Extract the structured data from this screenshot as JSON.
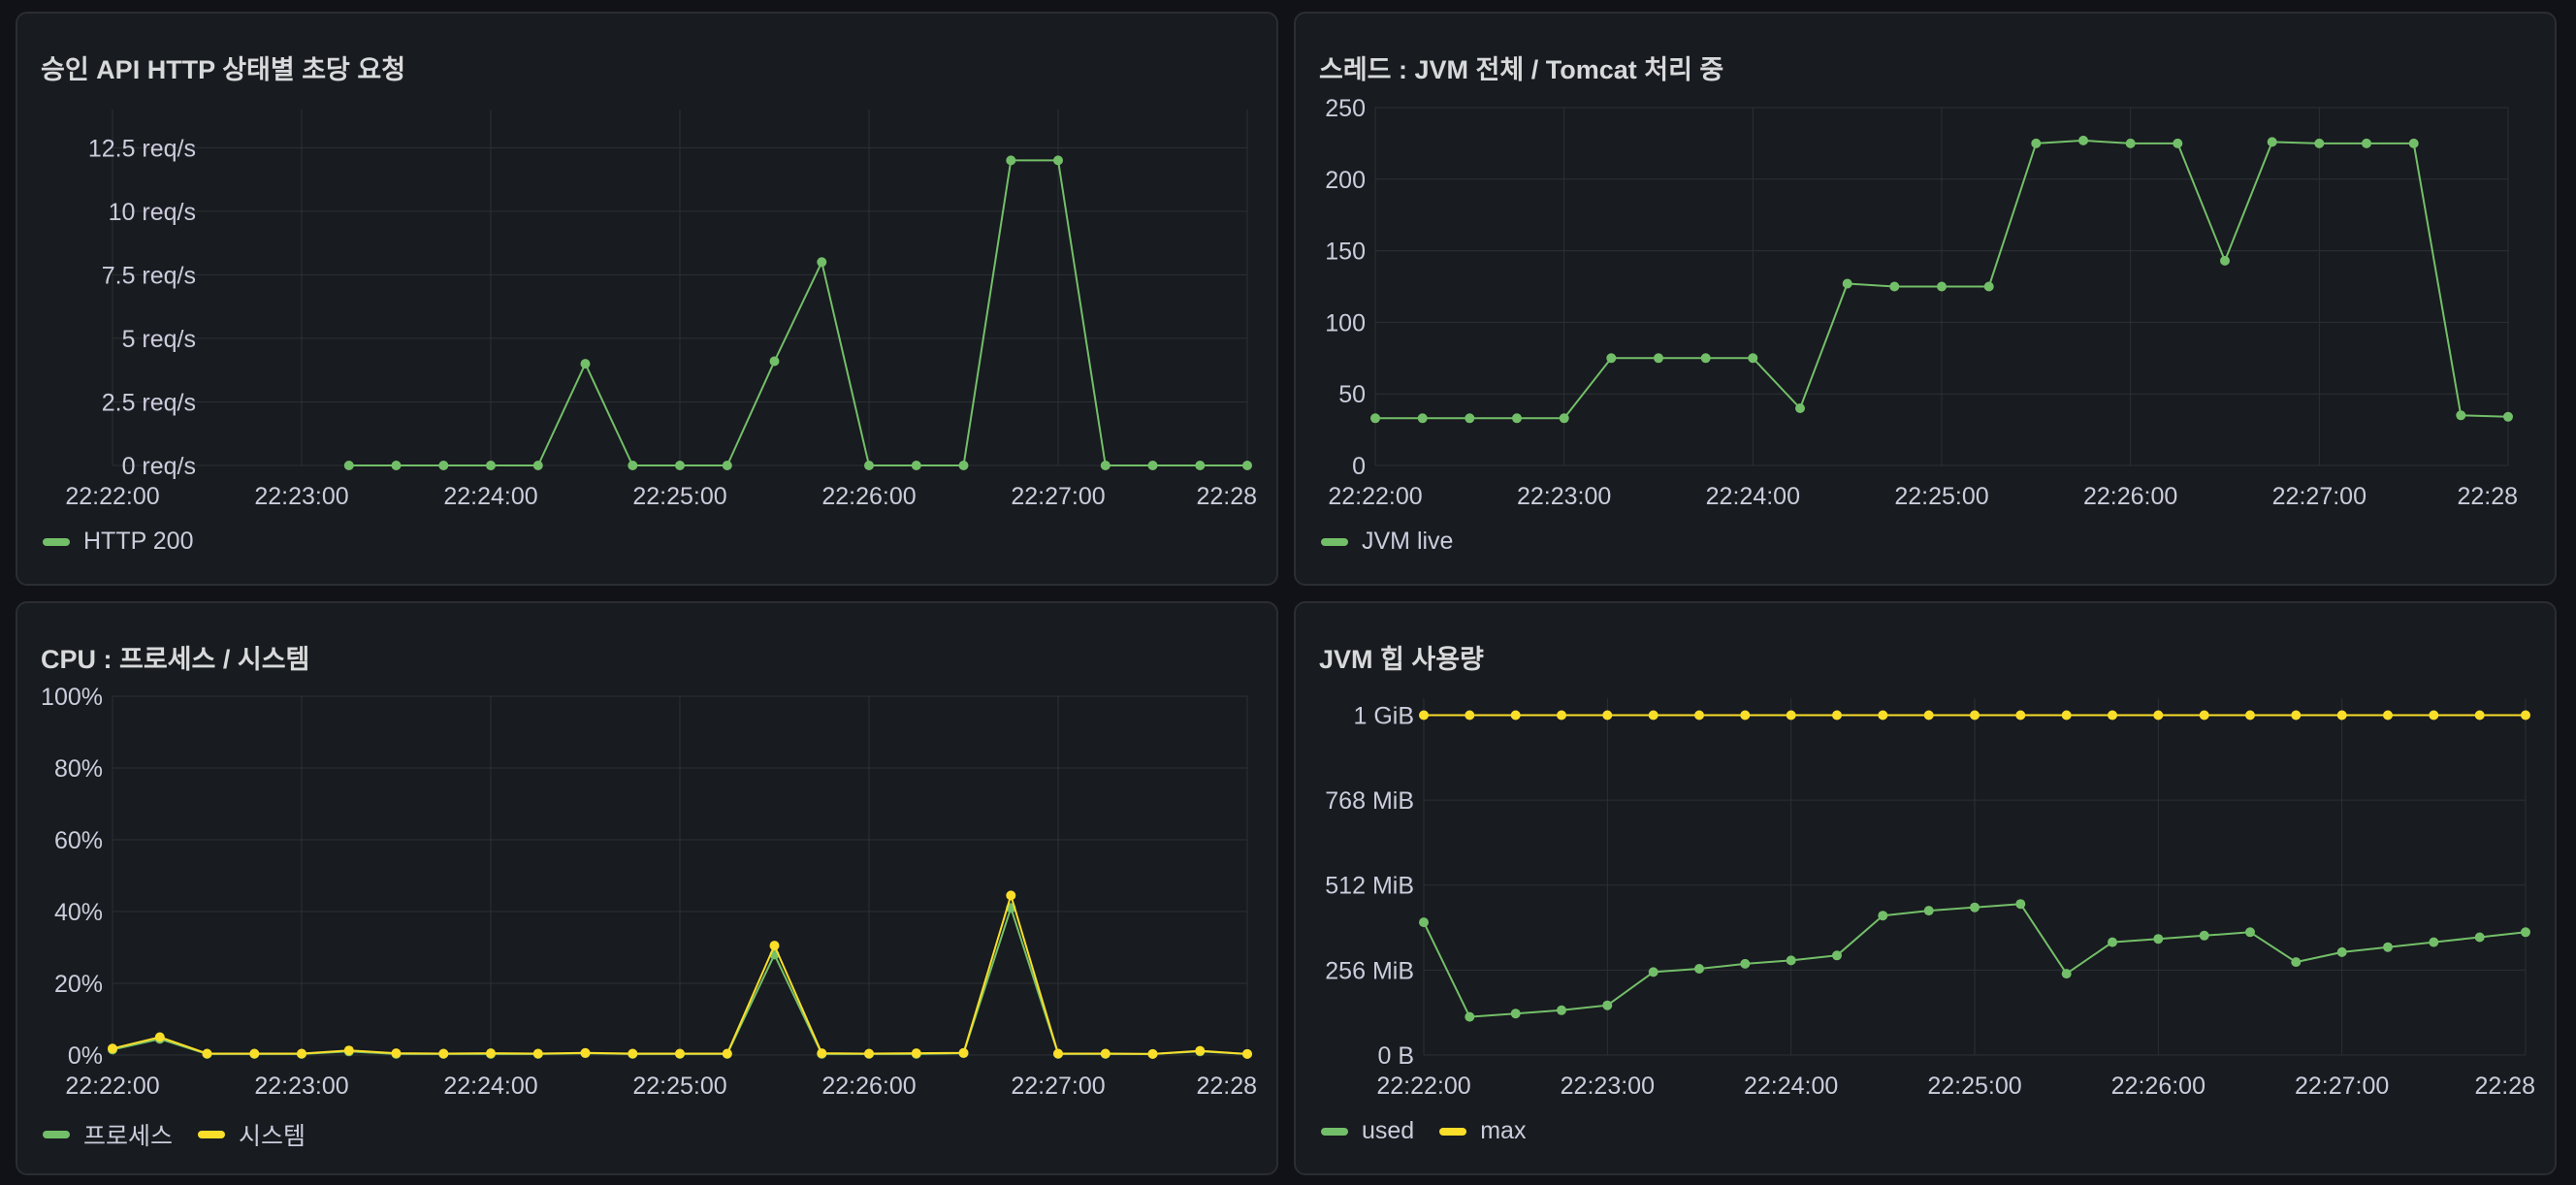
{
  "colors": {
    "green": "#73bf69",
    "yellow": "#fade2a",
    "grid": "#2c3036",
    "text": "#ccccdc"
  },
  "panels": [
    {
      "title": "승인 API HTTP 상태별 초당 요청",
      "chart_data": {
        "type": "line",
        "title": "승인 API HTTP 상태별 초당 요청",
        "x_ticks": [
          "22:22:00",
          "22:23:00",
          "22:24:00",
          "22:25:00",
          "22:26:00",
          "22:27:00",
          "22:28"
        ],
        "xlim": [
          "22:22:00",
          "22:28:00"
        ],
        "y_ticks": [
          0,
          2.5,
          5,
          7.5,
          10,
          12.5
        ],
        "y_tick_labels": [
          "0 req/s",
          "2.5 req/s",
          "5 req/s",
          "7.5 req/s",
          "10 req/s",
          "12.5 req/s"
        ],
        "ylim": [
          0,
          14
        ],
        "grid": true,
        "legend": "bottom-left",
        "series": [
          {
            "name": "HTTP 200",
            "color": "#73bf69",
            "x": [
              "22:23:15",
              "22:23:30",
              "22:23:45",
              "22:24:00",
              "22:24:15",
              "22:24:30",
              "22:24:45",
              "22:25:00",
              "22:25:15",
              "22:25:30",
              "22:25:45",
              "22:26:00",
              "22:26:15",
              "22:26:30",
              "22:26:45",
              "22:27:00",
              "22:27:15",
              "22:27:30",
              "22:27:45",
              "22:28:00"
            ],
            "y": [
              0,
              0,
              0,
              0,
              0,
              4,
              0,
              0,
              0,
              4.1,
              8,
              0,
              0,
              0,
              12,
              12,
              0,
              0,
              0,
              0
            ]
          }
        ]
      }
    },
    {
      "title": "스레드 : JVM 전체 / Tomcat 처리 중",
      "chart_data": {
        "type": "line",
        "title": "스레드 : JVM 전체 / Tomcat 처리 중",
        "x_ticks": [
          "22:22:00",
          "22:23:00",
          "22:24:00",
          "22:25:00",
          "22:26:00",
          "22:27:00",
          "22:28"
        ],
        "xlim": [
          "22:22:00",
          "22:28:00"
        ],
        "y_ticks": [
          0,
          50,
          100,
          150,
          200,
          250
        ],
        "y_tick_labels": [
          "0",
          "50",
          "100",
          "150",
          "200",
          "250"
        ],
        "ylim": [
          0,
          250
        ],
        "grid": true,
        "legend": "bottom-left",
        "series": [
          {
            "name": "JVM live",
            "color": "#73bf69",
            "x": [
              "22:22:00",
              "22:22:15",
              "22:22:30",
              "22:22:45",
              "22:23:00",
              "22:23:15",
              "22:23:30",
              "22:23:45",
              "22:24:00",
              "22:24:15",
              "22:24:30",
              "22:24:45",
              "22:25:00",
              "22:25:15",
              "22:25:30",
              "22:25:45",
              "22:26:00",
              "22:26:15",
              "22:26:30",
              "22:26:45",
              "22:27:00",
              "22:27:15",
              "22:27:30",
              "22:27:45",
              "22:28:00"
            ],
            "y": [
              33,
              33,
              33,
              33,
              33,
              75,
              75,
              75,
              75,
              40,
              127,
              125,
              125,
              125,
              225,
              227,
              225,
              225,
              143,
              226,
              225,
              225,
              225,
              35,
              34
            ]
          }
        ]
      }
    },
    {
      "title": "CPU : 프로세스 / 시스템",
      "chart_data": {
        "type": "line",
        "title": "CPU : 프로세스 / 시스템",
        "x_ticks": [
          "22:22:00",
          "22:23:00",
          "22:24:00",
          "22:25:00",
          "22:26:00",
          "22:27:00",
          "22:28"
        ],
        "xlim": [
          "22:22:00",
          "22:28:00"
        ],
        "y_ticks": [
          0,
          20,
          40,
          60,
          80,
          100
        ],
        "y_tick_labels": [
          "0%",
          "20%",
          "40%",
          "60%",
          "80%",
          "100%"
        ],
        "ylim": [
          0,
          100
        ],
        "grid": true,
        "legend": "bottom-left",
        "series": [
          {
            "name": "프로세스",
            "color": "#73bf69",
            "x": [
              "22:22:00",
              "22:22:15",
              "22:22:30",
              "22:22:45",
              "22:23:00",
              "22:23:15",
              "22:23:30",
              "22:23:45",
              "22:24:00",
              "22:24:15",
              "22:24:30",
              "22:24:45",
              "22:25:00",
              "22:25:15",
              "22:25:30",
              "22:25:45",
              "22:26:00",
              "22:26:15",
              "22:26:30",
              "22:26:45",
              "22:27:00",
              "22:27:15",
              "22:27:30",
              "22:27:45",
              "22:28:00"
            ],
            "y": [
              1.5,
              4.5,
              0.3,
              0.3,
              0.3,
              1,
              0.3,
              0.3,
              0.3,
              0.3,
              0.5,
              0.3,
              0.3,
              0.3,
              28,
              0.3,
              0.3,
              0.3,
              0.5,
              41,
              0.3,
              0.3,
              0.3,
              1,
              0.3
            ]
          },
          {
            "name": "시스템",
            "color": "#fade2a",
            "x": [
              "22:22:00",
              "22:22:15",
              "22:22:30",
              "22:22:45",
              "22:23:00",
              "22:23:15",
              "22:23:30",
              "22:23:45",
              "22:24:00",
              "22:24:15",
              "22:24:30",
              "22:24:45",
              "22:25:00",
              "22:25:15",
              "22:25:30",
              "22:25:45",
              "22:26:00",
              "22:26:15",
              "22:26:30",
              "22:26:45",
              "22:27:00",
              "22:27:15",
              "22:27:30",
              "22:27:45",
              "22:28:00"
            ],
            "y": [
              1.8,
              5,
              0.4,
              0.4,
              0.4,
              1.3,
              0.5,
              0.4,
              0.5,
              0.4,
              0.6,
              0.4,
              0.4,
              0.4,
              30.5,
              0.5,
              0.4,
              0.5,
              0.6,
              44.5,
              0.4,
              0.4,
              0.3,
              1.2,
              0.3
            ]
          }
        ]
      }
    },
    {
      "title": "JVM 힙 사용량",
      "chart_data": {
        "type": "line",
        "title": "JVM 힙 사용량",
        "x_ticks": [
          "22:22:00",
          "22:23:00",
          "22:24:00",
          "22:25:00",
          "22:26:00",
          "22:27:00",
          "22:28"
        ],
        "xlim": [
          "22:22:00",
          "22:28:00"
        ],
        "y_ticks": [
          0,
          256,
          512,
          768,
          1024
        ],
        "y_tick_labels": [
          "0 B",
          "256 MiB",
          "512 MiB",
          "768 MiB",
          "1 GiB"
        ],
        "ylim": [
          0,
          1075
        ],
        "grid": true,
        "legend": "bottom-left",
        "series": [
          {
            "name": "used",
            "color": "#73bf69",
            "x": [
              "22:22:00",
              "22:22:15",
              "22:22:30",
              "22:22:45",
              "22:23:00",
              "22:23:15",
              "22:23:30",
              "22:23:45",
              "22:24:00",
              "22:24:15",
              "22:24:30",
              "22:24:45",
              "22:25:00",
              "22:25:15",
              "22:25:30",
              "22:25:45",
              "22:26:00",
              "22:26:15",
              "22:26:30",
              "22:26:45",
              "22:27:00",
              "22:27:15",
              "22:27:30",
              "22:27:45",
              "22:28:00"
            ],
            "y": [
              400,
              115,
              125,
              135,
              150,
              250,
              260,
              275,
              285,
              300,
              420,
              435,
              445,
              455,
              245,
              340,
              350,
              360,
              370,
              280,
              310,
              325,
              340,
              355,
              370
            ]
          },
          {
            "name": "max",
            "color": "#fade2a",
            "x": [
              "22:22:00",
              "22:22:15",
              "22:22:30",
              "22:22:45",
              "22:23:00",
              "22:23:15",
              "22:23:30",
              "22:23:45",
              "22:24:00",
              "22:24:15",
              "22:24:30",
              "22:24:45",
              "22:25:00",
              "22:25:15",
              "22:25:30",
              "22:25:45",
              "22:26:00",
              "22:26:15",
              "22:26:30",
              "22:26:45",
              "22:27:00",
              "22:27:15",
              "22:27:30",
              "22:27:45",
              "22:28:00"
            ],
            "y": [
              1024,
              1024,
              1024,
              1024,
              1024,
              1024,
              1024,
              1024,
              1024,
              1024,
              1024,
              1024,
              1024,
              1024,
              1024,
              1024,
              1024,
              1024,
              1024,
              1024,
              1024,
              1024,
              1024,
              1024,
              1024
            ]
          }
        ]
      }
    }
  ]
}
